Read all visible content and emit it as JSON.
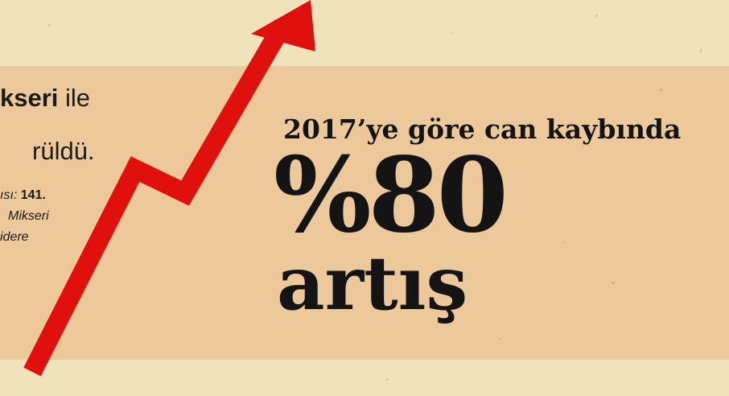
{
  "left_text": {
    "line1_bold": "kseri",
    "line1_rest": " ile",
    "line2": "rüldü.",
    "small1_italic": "ısı: ",
    "small1_bold": "141.",
    "small2": "Mikseri",
    "small3": "idere"
  },
  "headline": "2017’ye göre can kaybında",
  "big_value": "%80",
  "big_label": "artış",
  "colors": {
    "background": "#efe3bb",
    "band": "#ecc89a",
    "arrow": "#e0100f",
    "text": "#141414"
  },
  "icons": {
    "arrow": "rising-arrow-icon"
  }
}
